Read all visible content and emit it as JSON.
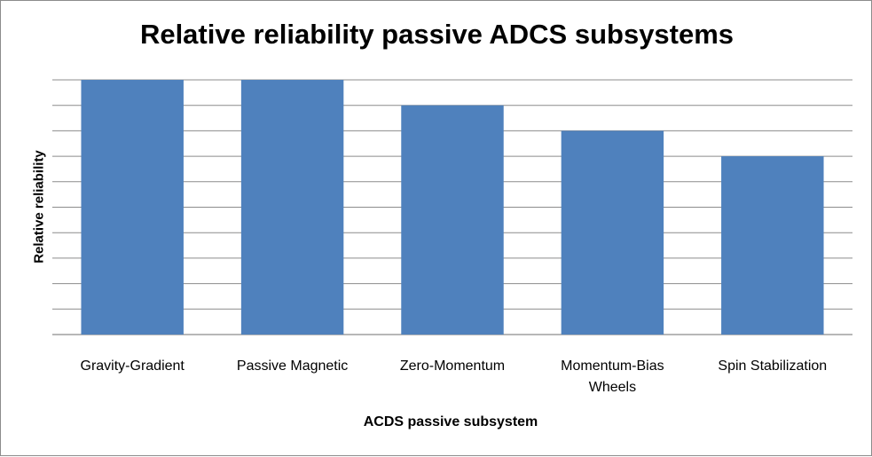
{
  "chart_data": {
    "type": "bar",
    "title": "Relative reliability passive ADCS subsystems",
    "xlabel": "ACDS passive subsystem",
    "ylabel": "Relative reliability",
    "categories": [
      [
        "Gravity-Gradient"
      ],
      [
        "Passive Magnetic"
      ],
      [
        "Zero-Momentum"
      ],
      [
        "Momentum-Bias",
        "Wheels"
      ],
      [
        "Spin Stabilization"
      ]
    ],
    "values": [
      10,
      10,
      9,
      8,
      7
    ],
    "ylim": [
      0,
      10
    ],
    "grid": true,
    "legend": "none",
    "bar_color": "#4f81bd",
    "grid_color": "#8c8c8c"
  }
}
